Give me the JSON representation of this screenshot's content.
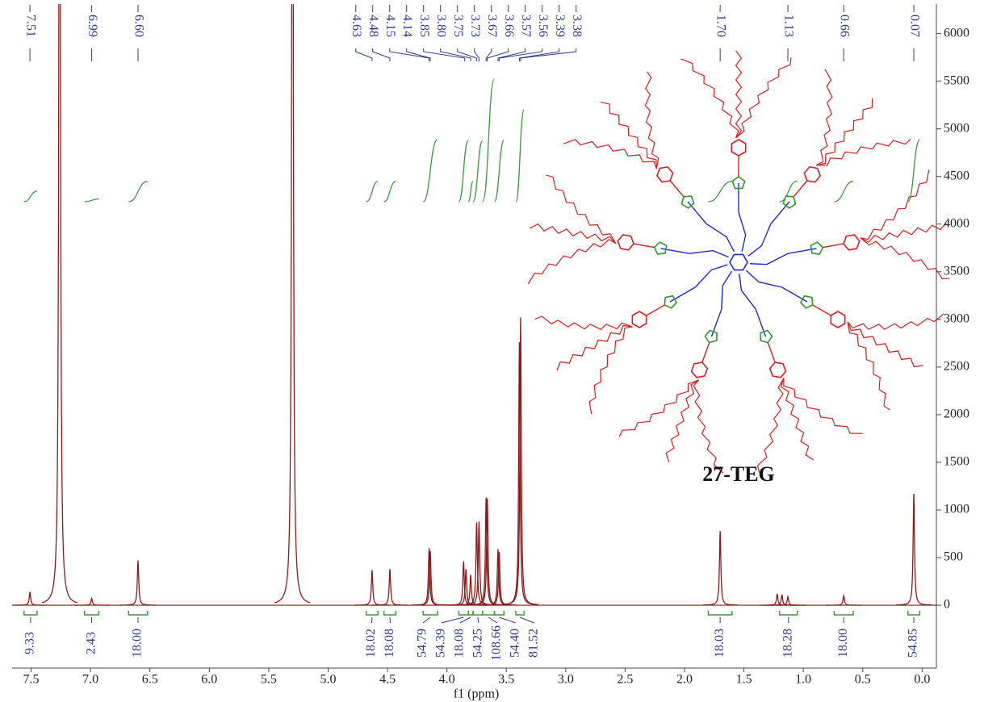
{
  "chart_data": {
    "type": "line",
    "x_label": "f1 (ppm)",
    "annotation": "27-TEG",
    "color": "#8b1a1a",
    "label_color": "#2b3a8f",
    "integral_color": "#3a9a3a",
    "xlim": [
      7.66,
      -0.12
    ],
    "ylim": [
      -660,
      6310
    ],
    "xticks": [
      7.5,
      {
        "value": 7,
        "label": "7.0"
      },
      6.5,
      {
        "value": 6,
        "label": "6.0"
      },
      5.5,
      {
        "value": 5,
        "label": "5.0"
      },
      4.5,
      {
        "value": 4,
        "label": "4.0"
      },
      3.5,
      {
        "value": 3,
        "label": "3.0"
      },
      2.5,
      {
        "value": 2,
        "label": "2.0"
      },
      1.5,
      {
        "value": 1,
        "label": "1.0"
      },
      0.5,
      {
        "value": 0,
        "label": "0.0"
      }
    ],
    "yticks": [
      0,
      500,
      1000,
      1500,
      2000,
      2500,
      3000,
      3500,
      4000,
      4500,
      5000,
      5500,
      6000
    ],
    "series": [
      {
        "x": [
          7.51,
          7.26,
          6.99,
          6.6,
          5.3,
          4.63,
          4.48,
          4.15,
          4.14,
          3.86,
          3.84,
          3.8,
          3.75,
          3.73,
          3.67,
          3.66,
          3.57,
          3.56,
          3.39,
          3.38,
          1.7,
          1.22,
          1.18,
          1.13,
          0.66,
          0.07
        ],
        "values": [
          140,
          12000,
          70,
          470,
          12000,
          370,
          380,
          600,
          570,
          460,
          380,
          320,
          870,
          880,
          1130,
          1120,
          590,
          560,
          2760,
          3020,
          780,
          120,
          110,
          90,
          100,
          1170
        ]
      }
    ],
    "peak_labels": [
      7.51,
      6.99,
      {
        "value": 6.6,
        "label": "6.60"
      },
      4.63,
      4.48,
      4.15,
      4.14,
      3.85,
      {
        "value": 3.8,
        "label": "3.80"
      },
      3.75,
      3.73,
      3.67,
      3.66,
      3.57,
      3.56,
      3.39,
      3.38,
      {
        "value": 1.7,
        "label": "1.70"
      },
      1.13,
      0.66,
      0.07
    ],
    "integrals": {
      "values": [
        9.33,
        2.43,
        18,
        18.02,
        18.08,
        54.79,
        54.39,
        18.08,
        54.25,
        108.66,
        54.4,
        81.52,
        18.03,
        18.28,
        18,
        54.85
      ],
      "value_labels": [
        "9.33",
        "2.43",
        "18.00",
        "18.02",
        "18.08",
        "54.79",
        "54.39",
        "18.08",
        "54.25",
        "108.66",
        "54.40",
        "81.52",
        "18.03",
        "18.28",
        "18.00",
        "54.85"
      ],
      "ranges": [
        [
          7.56,
          7.45
        ],
        [
          7.05,
          6.93
        ],
        [
          6.68,
          6.52
        ],
        [
          4.68,
          4.58
        ],
        [
          4.53,
          4.43
        ],
        [
          4.2,
          4.08
        ],
        [
          3.9,
          3.82
        ],
        [
          3.82,
          3.78
        ],
        [
          3.78,
          3.7
        ],
        [
          3.7,
          3.6
        ],
        [
          3.6,
          3.52
        ],
        [
          3.42,
          3.35
        ],
        [
          1.8,
          1.6
        ],
        [
          1.2,
          1.05
        ],
        [
          0.74,
          0.58
        ],
        [
          0.12,
          0.02
        ]
      ]
    }
  }
}
